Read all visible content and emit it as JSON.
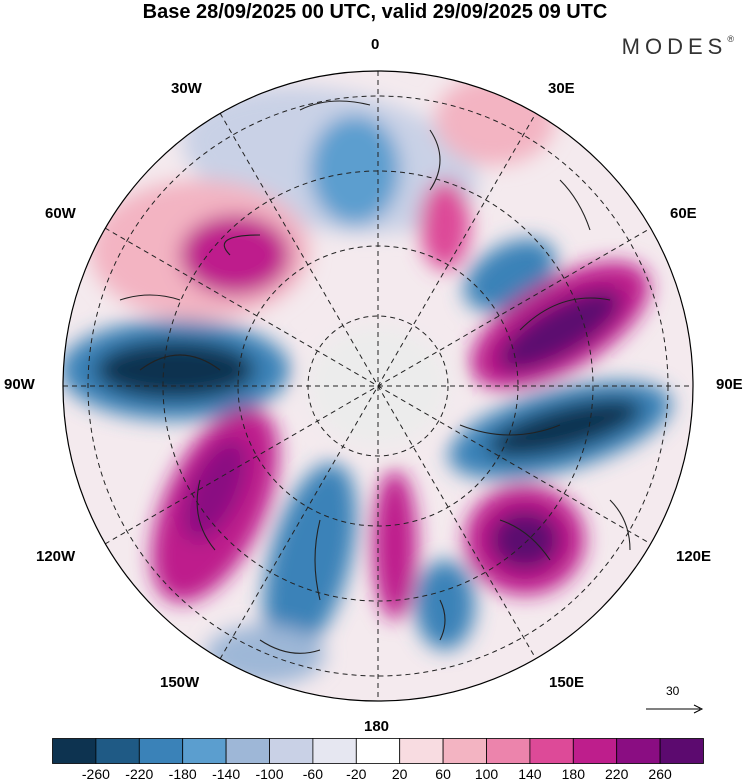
{
  "title": "Base 28/09/2025 00 UTC, valid 29/09/2025 09 UTC",
  "brand": "MODES",
  "brand_mark": "®",
  "longitude_labels": {
    "top": "0",
    "bottom": "180",
    "left": "90W",
    "right": "90E",
    "upper_left_1": "30W",
    "upper_left_2": "60W",
    "lower_left_1": "120W",
    "lower_left_2": "150W",
    "upper_right_1": "30E",
    "upper_right_2": "60E",
    "lower_right_1": "120E",
    "lower_right_2": "150E"
  },
  "reference_vector": "30",
  "colorbar": {
    "colors": [
      "#0d3350",
      "#1f5a85",
      "#3a82b8",
      "#5b9ecf",
      "#9eb7d7",
      "#c9d1e6",
      "#e6e7f1",
      "#ffffff",
      "#f8dce1",
      "#f3b4c2",
      "#ec84ac",
      "#dd4a98",
      "#be1e8c",
      "#8a0d82",
      "#5c0a6f"
    ],
    "ticks": [
      "-260",
      "-220",
      "-180",
      "-140",
      "-100",
      "-60",
      "-20",
      "20",
      "60",
      "100",
      "140",
      "180",
      "220",
      "260"
    ]
  }
}
